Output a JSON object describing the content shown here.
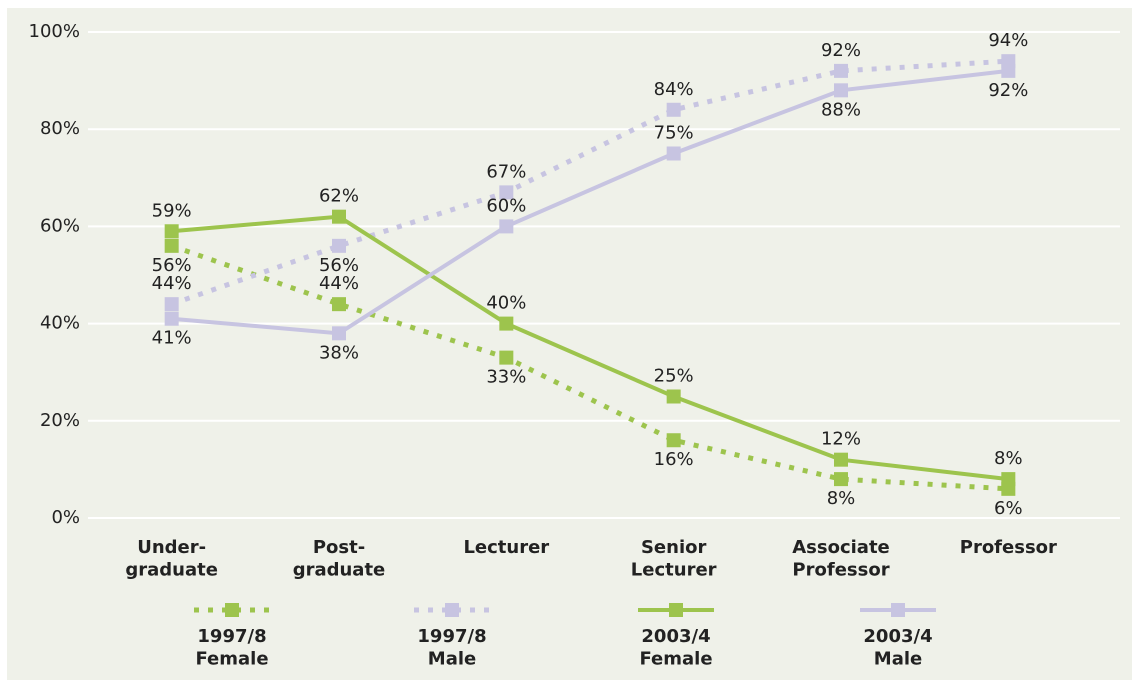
{
  "chart_data": {
    "type": "line",
    "categories": [
      "Under-\ngraduate",
      "Post-\ngraduate",
      "Lecturer",
      "Senior\nLecturer",
      "Associate\nProfessor",
      "Professor"
    ],
    "series": [
      {
        "name": "1997/8\nFemale",
        "color": "#9dc44d",
        "dash": true,
        "values": [
          56,
          44,
          33,
          16,
          8,
          6
        ],
        "value_labels": [
          "56%",
          "44%",
          "33%",
          "16%",
          "8%",
          "6%"
        ]
      },
      {
        "name": "1997/8\nMale",
        "color": "#c7c4e1",
        "dash": true,
        "values": [
          44,
          56,
          67,
          84,
          92,
          94
        ],
        "value_labels": [
          "44%",
          "56%",
          "67%",
          "84%",
          "92%",
          "94%"
        ]
      },
      {
        "name": "2003/4\nFemale",
        "color": "#9dc44d",
        "dash": false,
        "values": [
          59,
          62,
          40,
          25,
          12,
          8
        ],
        "value_labels": [
          "59%",
          "62%",
          "40%",
          "25%",
          "12%",
          "8%"
        ]
      },
      {
        "name": "2003/4\nMale",
        "color": "#c7c4e1",
        "dash": false,
        "values": [
          41,
          38,
          60,
          75,
          88,
          92
        ],
        "value_labels": [
          "41%",
          "38%",
          "60%",
          "75%",
          "88%",
          "92%"
        ]
      }
    ],
    "ylim": [
      0,
      100
    ],
    "yticks": [
      {
        "value": 0,
        "label": "0%"
      },
      {
        "value": 20,
        "label": "20%"
      },
      {
        "value": 40,
        "label": "40%"
      },
      {
        "value": 60,
        "label": "60%"
      },
      {
        "value": 80,
        "label": "80%"
      },
      {
        "value": 100,
        "label": "100%"
      }
    ],
    "grid": true
  }
}
